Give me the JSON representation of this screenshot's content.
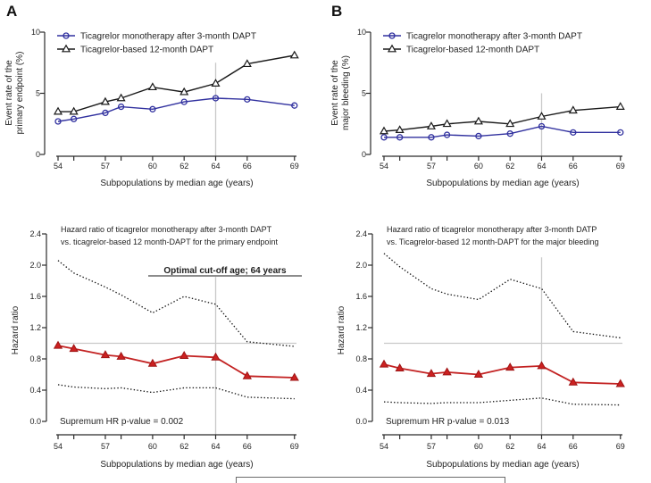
{
  "panels": {
    "a": "A",
    "b": "B"
  },
  "colors": {
    "blue": "#31319f",
    "black": "#1a1a1a",
    "red": "#c32222",
    "red_fill": "#cc2121",
    "red_stroke": "#9e1515",
    "dotted": "#111111",
    "reference_gray": "#c9c9c9",
    "axis": "#2b2b2b"
  },
  "x_axis": {
    "title": "Subpopulations by median age (years)",
    "tick_values": [
      54,
      55,
      57,
      58,
      60,
      62,
      64,
      66,
      69
    ],
    "labeled_ticks": [
      54,
      57,
      60,
      62,
      64,
      66,
      69
    ],
    "range": [
      54,
      69
    ]
  },
  "chart_data": [
    {
      "id": "event-primary",
      "type": "line",
      "panel": "A",
      "position": "top-left",
      "ylabel_lines": [
        "Event rate of the",
        "primary endpoint  (%)"
      ],
      "xlabel": "Subpopulations by median age (years)",
      "ylim": [
        0,
        10
      ],
      "yticks": {
        "values": [
          0,
          5,
          10
        ],
        "labels": [
          "0",
          "5",
          "10"
        ]
      },
      "x": [
        54,
        55,
        57,
        58,
        60,
        62,
        64,
        66,
        69
      ],
      "series": [
        {
          "name": "Ticagrelor monotherapy after 3-month DAPT",
          "marker": "circle-open",
          "style": "solid",
          "color": "#31319f",
          "values": [
            2.7,
            2.9,
            3.4,
            3.9,
            3.7,
            4.3,
            4.6,
            4.5,
            4.0
          ]
        },
        {
          "name": "Ticagrelor-based 12-month DAPT",
          "marker": "triangle-open",
          "style": "solid",
          "color": "#1a1a1a",
          "values": [
            3.5,
            3.5,
            4.3,
            4.6,
            5.5,
            5.1,
            5.8,
            7.4,
            8.1
          ]
        }
      ],
      "cutoff_line": {
        "x": 64,
        "y_from": 7.5,
        "y_to": 0
      },
      "show_legend": true
    },
    {
      "id": "event-bleeding",
      "type": "line",
      "panel": "B",
      "position": "top-right",
      "ylabel_lines": [
        "Event rate of the",
        "major bleeding (%)"
      ],
      "xlabel": "Subpopulations by median age (years)",
      "ylim": [
        0,
        10
      ],
      "yticks": {
        "values": [
          0,
          5,
          10
        ],
        "labels": [
          "0",
          "5",
          "10"
        ]
      },
      "x": [
        54,
        55,
        57,
        58,
        60,
        62,
        64,
        66,
        69
      ],
      "series": [
        {
          "name": "Ticagrelor monotherapy after 3-month DAPT",
          "marker": "circle-open",
          "style": "solid",
          "color": "#31319f",
          "values": [
            1.4,
            1.4,
            1.4,
            1.6,
            1.5,
            1.7,
            2.3,
            1.8,
            1.8
          ]
        },
        {
          "name": "Ticagrelor-based 12-month DAPT",
          "marker": "triangle-open",
          "style": "solid",
          "color": "#1a1a1a",
          "values": [
            1.9,
            2.0,
            2.3,
            2.5,
            2.7,
            2.5,
            3.1,
            3.6,
            3.9
          ]
        }
      ],
      "cutoff_line": {
        "x": 64,
        "y_from": 5.0,
        "y_to": 0
      },
      "show_legend": true
    },
    {
      "id": "hr-primary",
      "type": "line",
      "panel": "A",
      "position": "bottom-left",
      "title_lines": [
        "Hazard ratio of ticagrelor monotherapy after 3-month DAPT",
        "vs. ticagrelor-based 12 month-DAPT for the primary endpoint"
      ],
      "ylabel_lines": [
        "Hazard ratio"
      ],
      "xlabel": "Subpopulations by median age (years)",
      "ylim": [
        0,
        2.4
      ],
      "yticks": {
        "values": [
          0,
          0.4,
          0.8,
          1.2,
          1.6,
          2.0,
          2.4
        ],
        "labels": [
          "0.0",
          "0.4",
          "0.8",
          "1.2",
          "1.6",
          "2.0",
          "2.4"
        ]
      },
      "x": [
        54,
        55,
        57,
        58,
        60,
        62,
        64,
        66,
        69
      ],
      "series": [
        {
          "name": "Upper 95% CI",
          "marker": null,
          "style": "dotted",
          "color": "#111111",
          "values": [
            2.06,
            1.9,
            1.72,
            1.62,
            1.39,
            1.6,
            1.5,
            1.02,
            0.96
          ]
        },
        {
          "name": "Lower 95% CI",
          "marker": null,
          "style": "dotted",
          "color": "#111111",
          "values": [
            0.47,
            0.44,
            0.42,
            0.43,
            0.37,
            0.43,
            0.43,
            0.31,
            0.29
          ]
        },
        {
          "name": "Hazard ratio",
          "marker": "triangle-filled",
          "style": "solid",
          "color": "#c32222",
          "values": [
            0.97,
            0.93,
            0.85,
            0.83,
            0.74,
            0.84,
            0.82,
            0.58,
            0.56
          ]
        }
      ],
      "reference_hline": 1.0,
      "cutoff_line": {
        "x": 64,
        "y_from": 1.85,
        "y_to": 0
      },
      "annotation": "Optimal cut-off age; 64 years",
      "pvalue_label": "Supremum HR p-value = 0.002",
      "show_legend": false
    },
    {
      "id": "hr-bleeding",
      "type": "line",
      "panel": "B",
      "position": "bottom-right",
      "title_lines": [
        "Hazard ratio of ticagrelor monotherapy after 3-month DATP",
        "vs. Ticagrelor-based 12 month-DAPT for the major bleeding"
      ],
      "ylabel_lines": [
        "Hazard ratio"
      ],
      "xlabel": "Subpopulations by median age (years)",
      "ylim": [
        0,
        2.4
      ],
      "yticks": {
        "values": [
          0,
          0.4,
          0.8,
          1.2,
          1.6,
          2.0,
          2.4
        ],
        "labels": [
          "0.0",
          "0.4",
          "0.8",
          "1.2",
          "1.6",
          "2.0",
          "2.4"
        ]
      },
      "x": [
        54,
        55,
        57,
        58,
        60,
        62,
        64,
        66,
        69
      ],
      "series": [
        {
          "name": "Upper 95% CI",
          "marker": null,
          "style": "dotted",
          "color": "#111111",
          "values": [
            2.15,
            1.98,
            1.7,
            1.63,
            1.56,
            1.82,
            1.7,
            1.15,
            1.07
          ]
        },
        {
          "name": "Lower 95% CI",
          "marker": null,
          "style": "dotted",
          "color": "#111111",
          "values": [
            0.25,
            0.24,
            0.23,
            0.24,
            0.24,
            0.27,
            0.3,
            0.22,
            0.21
          ]
        },
        {
          "name": "Hazard ratio",
          "marker": "triangle-filled",
          "style": "solid",
          "color": "#c32222",
          "values": [
            0.73,
            0.68,
            0.61,
            0.63,
            0.6,
            0.69,
            0.71,
            0.5,
            0.48
          ]
        }
      ],
      "reference_hline": 1.0,
      "cutoff_line": {
        "x": 64,
        "y_from": 2.1,
        "y_to": 0
      },
      "pvalue_label": "Supremum HR p-value = 0.013",
      "show_legend": false
    }
  ]
}
